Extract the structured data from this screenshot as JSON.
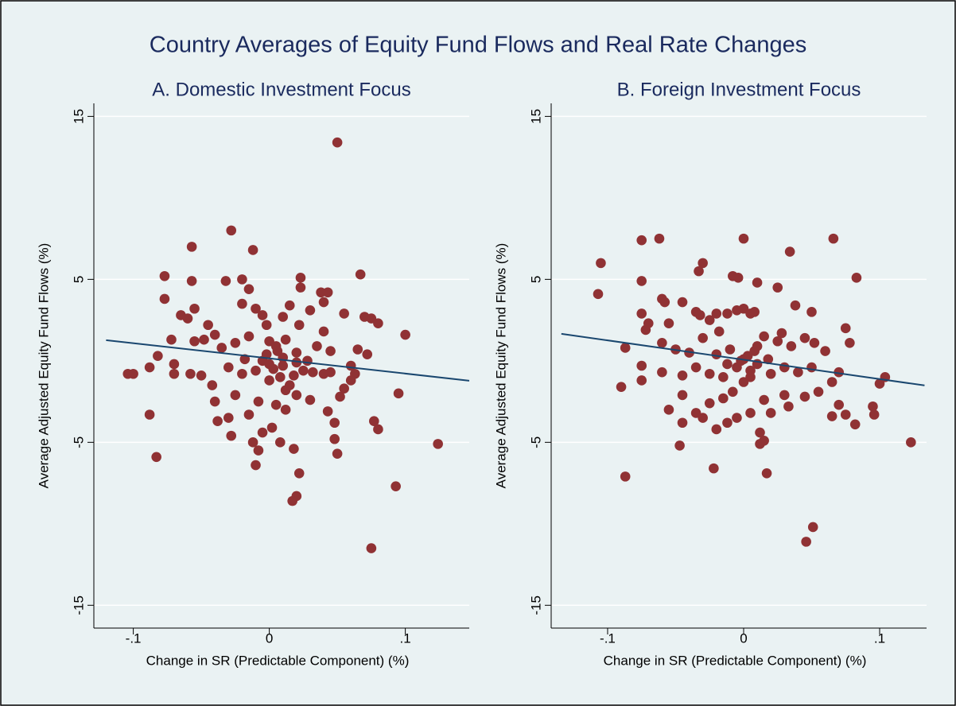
{
  "title": "Country Averages of Equity Fund Flows and Real Rate Changes",
  "chart_data": [
    {
      "type": "scatter",
      "subtitle": "A. Domestic Investment Focus",
      "xlabel": "Change in SR (Predictable Component) (%)",
      "ylabel": "Average Adjusted Equity Fund Flows (%)",
      "xlim": [
        -0.129,
        0.147
      ],
      "ylim": [
        -16.4,
        15.8
      ],
      "xticks": [
        {
          "value": -0.1,
          "label": "-.1"
        },
        0,
        {
          "value": 0.1,
          "label": ".1"
        }
      ],
      "yticks": [
        -15,
        -5,
        5,
        15
      ],
      "grid": true,
      "series": [
        {
          "type": "scatter",
          "color": "#903234",
          "x": [
            0.05,
            -0.028,
            -0.057,
            -0.012,
            -0.077,
            0.067,
            0.023,
            -0.057,
            -0.032,
            -0.02,
            -0.015,
            0.023,
            -0.077,
            -0.055,
            0.038,
            0.043,
            0.04,
            0.015,
            -0.02,
            -0.01,
            -0.065,
            -0.06,
            -0.045,
            -0.005,
            0.01,
            0.03,
            0.055,
            0.07,
            0.075,
            0.08,
            -0.072,
            -0.055,
            -0.04,
            -0.025,
            -0.015,
            0.0,
            0.005,
            0.012,
            0.02,
            0.035,
            0.045,
            0.065,
            0.072,
            0.1,
            -0.104,
            -0.1,
            -0.088,
            -0.082,
            -0.07,
            -0.07,
            -0.058,
            -0.05,
            -0.042,
            -0.03,
            -0.02,
            -0.01,
            -0.005,
            0.0,
            0.003,
            0.008,
            0.01,
            0.015,
            0.02,
            0.028,
            0.032,
            0.04,
            0.045,
            0.06,
            0.063,
            -0.04,
            -0.03,
            -0.025,
            -0.015,
            -0.008,
            0.005,
            0.012,
            0.02,
            0.03,
            0.043,
            0.048,
            0.052,
            0.055,
            -0.088,
            -0.083,
            -0.038,
            -0.028,
            -0.012,
            -0.005,
            0.002,
            0.008,
            -0.008,
            -0.01,
            0.018,
            0.022,
            0.02,
            0.017,
            0.048,
            0.05,
            0.077,
            0.08,
            0.093,
            0.095,
            0.075,
            0.124,
            0.01,
            -0.002,
            0.006,
            -0.018,
            0.025,
            0.018,
            -0.035,
            -0.048,
            0.04,
            0.022,
            -0.002,
            0.0,
            0.012,
            0.06
          ],
          "values": [
            13.4,
            8.0,
            7.0,
            6.8,
            5.2,
            5.3,
            5.1,
            4.9,
            4.9,
            5.0,
            4.4,
            4.5,
            3.8,
            3.2,
            4.2,
            4.2,
            3.6,
            3.4,
            3.5,
            3.2,
            2.8,
            2.6,
            2.2,
            2.8,
            2.7,
            3.1,
            2.9,
            2.7,
            2.6,
            2.3,
            1.3,
            1.2,
            1.6,
            1.1,
            1.5,
            1.2,
            0.9,
            1.3,
            0.5,
            0.9,
            0.6,
            0.7,
            0.4,
            1.6,
            -0.8,
            -0.8,
            -0.4,
            0.3,
            -0.2,
            -0.8,
            -0.8,
            -0.9,
            -1.5,
            -0.4,
            -0.8,
            -0.6,
            0.0,
            -0.2,
            -0.5,
            -1.0,
            -0.3,
            -1.5,
            -0.1,
            0.0,
            -0.7,
            -0.8,
            -0.7,
            -0.3,
            -0.8,
            -2.5,
            -3.5,
            -2.1,
            -3.3,
            -2.5,
            -2.7,
            -3.0,
            -2.1,
            -2.4,
            -3.1,
            -3.8,
            -2.2,
            -1.7,
            -3.3,
            -5.9,
            -3.7,
            -4.6,
            -5.0,
            -4.4,
            -4.1,
            -5.0,
            -5.5,
            -6.4,
            -5.4,
            -6.9,
            -8.3,
            -8.6,
            -4.8,
            -5.7,
            -3.7,
            -4.2,
            -7.7,
            -2.0,
            -11.5,
            -5.1,
            0.2,
            0.4,
            0.6,
            0.1,
            -0.6,
            -0.9,
            0.8,
            1.3,
            1.8,
            2.2,
            2.2,
            -1.2,
            -1.8,
            -1.2
          ]
        },
        {
          "type": "line",
          "color": "#1a476f",
          "x": [
            -0.12,
            0.147
          ],
          "values": [
            1.27,
            -1.22
          ]
        }
      ]
    },
    {
      "type": "scatter",
      "subtitle": "B. Foreign Investment Focus",
      "xlabel": "Change in SR (Predictable Component) (%)",
      "ylabel": "Average Adjusted Equity Fund Flows (%)",
      "xlim": [
        -0.1415,
        0.1345
      ],
      "ylim": [
        -16.4,
        15.8
      ],
      "xticks": [
        {
          "value": -0.1,
          "label": "-.1"
        },
        0,
        {
          "value": 0.1,
          "label": ".1"
        }
      ],
      "yticks": [
        -15,
        -5,
        5,
        15
      ],
      "grid": true,
      "series": [
        {
          "type": "scatter",
          "color": "#903234",
          "x": [
            -0.105,
            -0.107,
            -0.075,
            -0.062,
            0.0,
            0.066,
            0.034,
            -0.03,
            -0.033,
            -0.075,
            -0.045,
            -0.06,
            -0.058,
            -0.075,
            -0.072,
            -0.07,
            -0.055,
            -0.035,
            -0.032,
            -0.025,
            -0.02,
            -0.012,
            -0.005,
            0.0,
            0.005,
            0.01,
            0.008,
            -0.008,
            -0.004,
            0.025,
            0.038,
            0.05,
            0.083,
            -0.087,
            -0.06,
            -0.05,
            -0.04,
            -0.03,
            -0.02,
            -0.01,
            0.0,
            0.008,
            0.015,
            0.025,
            0.035,
            0.045,
            0.052,
            0.06,
            0.075,
            0.078,
            -0.075,
            -0.075,
            -0.06,
            -0.045,
            -0.035,
            -0.025,
            -0.015,
            -0.005,
            0.005,
            0.01,
            0.02,
            0.03,
            0.04,
            0.05,
            0.065,
            0.07,
            0.1,
            0.104,
            -0.09,
            -0.055,
            -0.045,
            -0.035,
            -0.025,
            -0.015,
            -0.008,
            0.0,
            0.005,
            0.015,
            0.02,
            0.03,
            0.033,
            0.045,
            0.055,
            0.07,
            0.075,
            0.095,
            0.096,
            0.082,
            -0.047,
            -0.045,
            -0.03,
            -0.012,
            -0.02,
            -0.005,
            0.012,
            0.015,
            0.012,
            0.065,
            0.123,
            -0.087,
            -0.022,
            0.017,
            0.051,
            0.046,
            0.003,
            -0.002,
            0.01,
            0.018,
            -0.012,
            0.028,
            -0.018,
            0.005
          ],
          "values": [
            6.0,
            4.1,
            7.4,
            7.5,
            7.5,
            7.5,
            6.7,
            6.0,
            5.5,
            4.9,
            3.6,
            3.8,
            3.6,
            2.9,
            1.9,
            2.3,
            2.3,
            3.0,
            2.8,
            2.5,
            2.9,
            2.9,
            3.1,
            3.2,
            2.9,
            4.8,
            3.0,
            5.2,
            5.1,
            4.5,
            3.4,
            3.0,
            5.1,
            0.8,
            1.1,
            0.7,
            0.5,
            1.4,
            0.4,
            0.7,
            0.1,
            0.6,
            1.5,
            1.2,
            0.9,
            1.4,
            1.1,
            0.6,
            2.0,
            1.1,
            -0.3,
            -1.2,
            -0.7,
            -0.9,
            -0.4,
            -0.8,
            -1.0,
            -0.4,
            -0.6,
            -0.2,
            -0.8,
            -0.4,
            -0.7,
            -0.4,
            -1.3,
            -0.7,
            -1.4,
            -1.0,
            -1.6,
            -3.0,
            -2.1,
            -3.2,
            -2.6,
            -2.3,
            -1.9,
            -1.3,
            -3.2,
            -2.4,
            -3.2,
            -2.1,
            -2.8,
            -2.2,
            -1.9,
            -2.7,
            -3.3,
            -2.8,
            -3.3,
            -3.9,
            -5.2,
            -3.8,
            -3.5,
            -3.8,
            -4.2,
            -3.5,
            -4.4,
            -4.9,
            -5.1,
            -3.4,
            -5.0,
            -7.1,
            -6.6,
            -6.9,
            -10.2,
            -11.1,
            0.3,
            0.0,
            0.9,
            0.1,
            -0.2,
            1.7,
            1.8,
            -1.0
          ]
        },
        {
          "type": "line",
          "color": "#1a476f",
          "x": [
            -0.134,
            0.133
          ],
          "values": [
            1.66,
            -1.51
          ]
        }
      ]
    }
  ]
}
